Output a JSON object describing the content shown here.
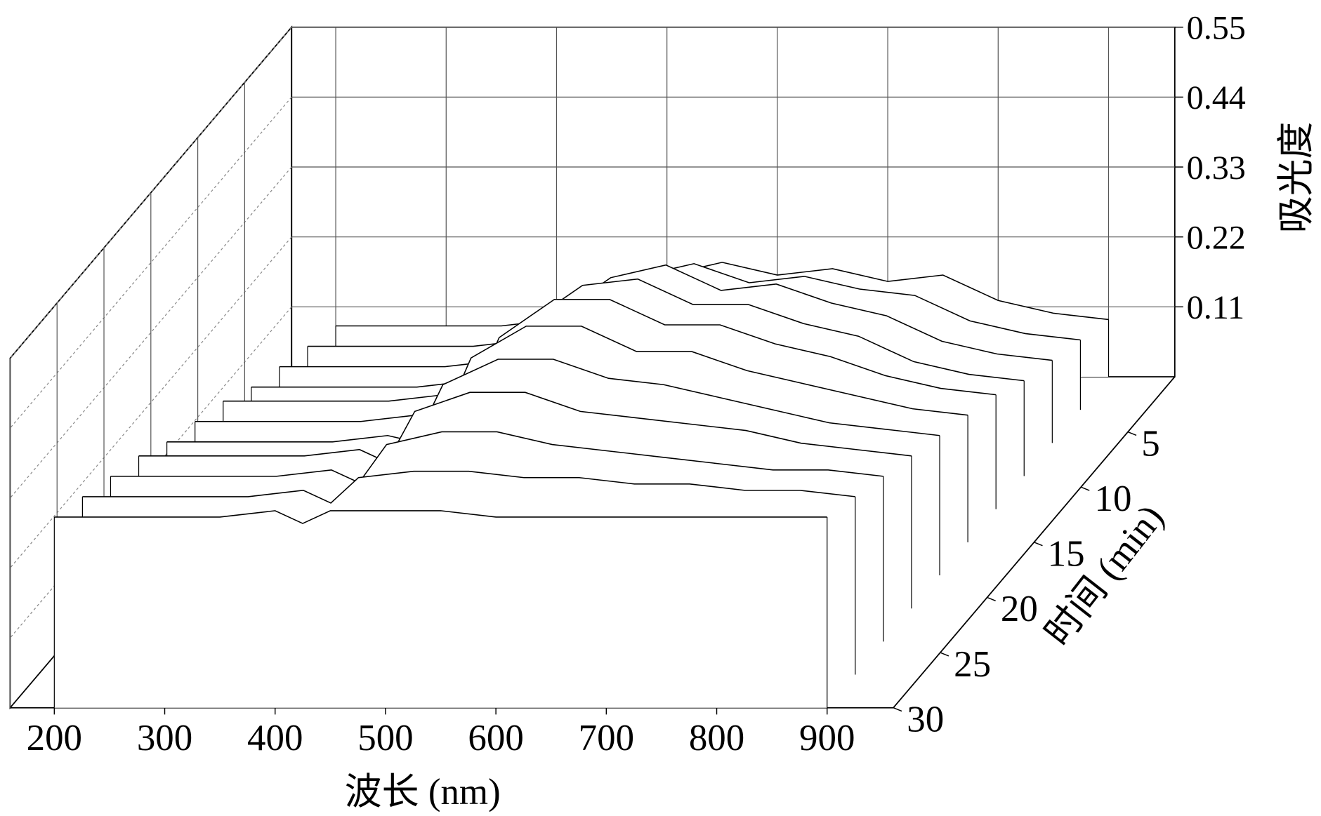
{
  "chart_data": {
    "type": "waterfall",
    "x_label": "波长 (nm)",
    "y_label": "吸光度",
    "z_label": "时间 (min)",
    "x": [
      200,
      250,
      300,
      350,
      400,
      425,
      450,
      500,
      550,
      600,
      650,
      700,
      750,
      800,
      850,
      900
    ],
    "xlim": [
      160,
      960
    ],
    "xticks": [
      200,
      300,
      400,
      500,
      600,
      700,
      800,
      900
    ],
    "ylim": [
      0,
      0.55
    ],
    "yticks": [
      0.11,
      0.22,
      0.33,
      0.44,
      0.55
    ],
    "zlim": [
      0,
      30
    ],
    "zticks": [
      5,
      10,
      15,
      20,
      25,
      30
    ],
    "grid": true,
    "color": "#000000",
    "series": [
      {
        "z": 0,
        "values": [
          0.08,
          0.08,
          0.08,
          0.08,
          0.09,
          0.11,
          0.13,
          0.16,
          0.18,
          0.16,
          0.17,
          0.15,
          0.16,
          0.12,
          0.1,
          0.09
        ]
      },
      {
        "z": 3,
        "values": [
          0.1,
          0.1,
          0.1,
          0.1,
          0.11,
          0.12,
          0.16,
          0.21,
          0.23,
          0.2,
          0.21,
          0.19,
          0.18,
          0.14,
          0.12,
          0.11
        ]
      },
      {
        "z": 6,
        "values": [
          0.12,
          0.12,
          0.12,
          0.12,
          0.13,
          0.14,
          0.2,
          0.26,
          0.28,
          0.24,
          0.25,
          0.22,
          0.2,
          0.16,
          0.14,
          0.13
        ]
      },
      {
        "z": 9,
        "values": [
          0.14,
          0.14,
          0.14,
          0.14,
          0.15,
          0.15,
          0.24,
          0.3,
          0.31,
          0.27,
          0.27,
          0.24,
          0.22,
          0.18,
          0.16,
          0.15
        ]
      },
      {
        "z": 12,
        "values": [
          0.17,
          0.17,
          0.17,
          0.17,
          0.18,
          0.17,
          0.27,
          0.33,
          0.33,
          0.29,
          0.29,
          0.26,
          0.24,
          0.21,
          0.19,
          0.18
        ]
      },
      {
        "z": 15,
        "values": [
          0.19,
          0.19,
          0.19,
          0.19,
          0.2,
          0.19,
          0.29,
          0.34,
          0.34,
          0.3,
          0.3,
          0.27,
          0.25,
          0.23,
          0.21,
          0.2
        ]
      },
      {
        "z": 18,
        "values": [
          0.21,
          0.21,
          0.21,
          0.21,
          0.22,
          0.21,
          0.3,
          0.34,
          0.34,
          0.31,
          0.3,
          0.28,
          0.26,
          0.24,
          0.23,
          0.22
        ]
      },
      {
        "z": 21,
        "values": [
          0.24,
          0.24,
          0.24,
          0.24,
          0.25,
          0.23,
          0.31,
          0.34,
          0.34,
          0.31,
          0.3,
          0.29,
          0.28,
          0.26,
          0.25,
          0.24
        ]
      },
      {
        "z": 24,
        "values": [
          0.26,
          0.26,
          0.26,
          0.26,
          0.27,
          0.25,
          0.31,
          0.33,
          0.33,
          0.31,
          0.3,
          0.29,
          0.28,
          0.27,
          0.27,
          0.26
        ]
      },
      {
        "z": 27,
        "values": [
          0.28,
          0.28,
          0.28,
          0.28,
          0.29,
          0.27,
          0.31,
          0.32,
          0.32,
          0.31,
          0.31,
          0.3,
          0.3,
          0.29,
          0.29,
          0.28
        ]
      },
      {
        "z": 30,
        "values": [
          0.3,
          0.3,
          0.3,
          0.3,
          0.31,
          0.29,
          0.31,
          0.31,
          0.31,
          0.3,
          0.3,
          0.3,
          0.3,
          0.3,
          0.3,
          0.3
        ]
      }
    ]
  }
}
